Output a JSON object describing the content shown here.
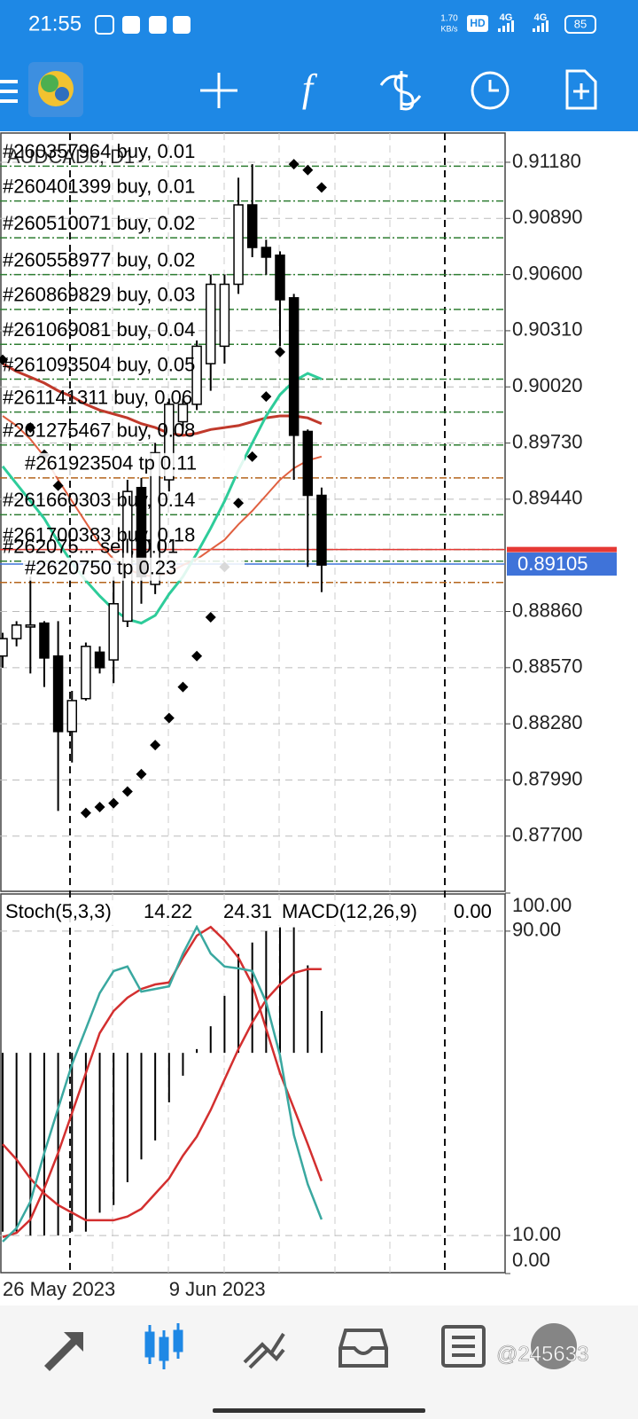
{
  "status_bar": {
    "time": "21:55",
    "speed": "1.70",
    "speed_unit": "KB/s",
    "hd": "HD",
    "network": [
      "4G",
      "4G"
    ],
    "battery": "85"
  },
  "watermark": "@245633",
  "chart_data": {
    "type": "candlestick",
    "title": "AUDCADc, D1",
    "categories": [
      "26 May 2023",
      null,
      null,
      null,
      null,
      null,
      null,
      null,
      null,
      null,
      null,
      null,
      "9 Jun 2023",
      null,
      null,
      null,
      null,
      null,
      null,
      null,
      null,
      null,
      null,
      null
    ],
    "open": [
      0.8863,
      0.8872,
      0.8878,
      0.888,
      0.8863,
      0.8824,
      0.8841,
      0.8865,
      0.8861,
      0.8881,
      0.895,
      0.89,
      0.8954,
      0.8984,
      0.8993,
      0.9014,
      0.9023,
      0.9055,
      0.9096,
      0.9074,
      0.907,
      0.9048,
      0.8979,
      0.8946
    ],
    "high": [
      0.8875,
      0.8881,
      0.8904,
      0.8881,
      0.8881,
      0.8845,
      0.887,
      0.8868,
      0.8904,
      0.8954,
      0.8955,
      0.8973,
      0.8996,
      0.8996,
      0.9026,
      0.906,
      0.906,
      0.911,
      0.9117,
      0.9078,
      0.9072,
      0.905,
      0.898,
      0.895
    ],
    "low": [
      0.8857,
      0.8868,
      0.8854,
      0.8847,
      0.8783,
      0.8808,
      0.884,
      0.8854,
      0.8849,
      0.8878,
      0.889,
      0.8895,
      0.8948,
      0.898,
      0.899,
      0.9,
      0.9014,
      0.905,
      0.9069,
      0.906,
      0.9023,
      0.8954,
      0.8909,
      0.8896
    ],
    "close": [
      0.8872,
      0.8879,
      0.8879,
      0.8862,
      0.8824,
      0.884,
      0.8868,
      0.8857,
      0.889,
      0.8948,
      0.8904,
      0.8968,
      0.8993,
      0.8993,
      0.9023,
      0.9055,
      0.9055,
      0.9096,
      0.9074,
      0.9069,
      0.9047,
      0.8977,
      0.8946,
      0.891
    ],
    "up_color": "#ffffff",
    "down_color": "#000000",
    "ylim": [
      0.87415,
      0.91331
    ],
    "yticks": [
      {
        "value": 0.9118,
        "label": "0.91180"
      },
      {
        "value": 0.9089,
        "label": "0.90890"
      },
      {
        "value": 0.906,
        "label": "0.90600"
      },
      {
        "value": 0.9031,
        "label": "0.90310"
      },
      {
        "value": 0.9002,
        "label": "0.90020"
      },
      {
        "value": 0.8973,
        "label": "0.89730"
      },
      {
        "value": 0.8944,
        "label": "0.89440"
      },
      {
        "value": 0.8886,
        "label": "0.88860"
      },
      {
        "value": 0.8857,
        "label": "0.88570"
      },
      {
        "value": 0.8828,
        "label": "0.88280"
      },
      {
        "value": 0.8799,
        "label": "0.87990"
      },
      {
        "value": 0.877,
        "label": "0.87700"
      }
    ],
    "grid": true,
    "bid": 0.89105,
    "bid_color": "#3f73d9",
    "ask": 0.8918,
    "ask_color": "#e53935",
    "moving_averages": [
      {
        "color": "#c0392b",
        "values": [
          0.9014,
          0.901,
          0.9007,
          0.9004,
          0.9,
          0.8997,
          0.8993,
          0.899,
          0.8988,
          0.8986,
          0.8983,
          0.8981,
          0.8978,
          0.8977,
          0.8978,
          0.898,
          0.8981,
          0.8982,
          0.8984,
          0.8986,
          0.8987,
          0.8987,
          0.8986,
          0.8983
        ]
      },
      {
        "color": "#e06040",
        "values": [
          0.8987,
          0.8982,
          0.8975,
          0.8966,
          0.8954,
          0.8943,
          0.8932,
          0.8921,
          0.8913,
          0.8908,
          0.8905,
          0.8904,
          0.8906,
          0.891,
          0.8913,
          0.8918,
          0.8923,
          0.8931,
          0.8938,
          0.8946,
          0.8954,
          0.896,
          0.8964,
          0.8966
        ]
      },
      {
        "color": "#2ecc9a",
        "values": [
          0.8961,
          0.8952,
          0.8943,
          0.8934,
          0.8922,
          0.8911,
          0.8902,
          0.8894,
          0.8887,
          0.8882,
          0.888,
          0.8884,
          0.8895,
          0.8904,
          0.8916,
          0.8929,
          0.8943,
          0.8959,
          0.8973,
          0.8987,
          0.8998,
          0.9005,
          0.9009,
          0.9006
        ]
      }
    ],
    "sar": {
      "color": "#000000",
      "values": [
        0.9016,
        null,
        0.8981,
        0.8967,
        0.8951,
        null,
        0.8782,
        0.8785,
        0.8787,
        0.8793,
        0.8802,
        0.8817,
        0.8831,
        0.8847,
        0.8863,
        0.8883,
        0.8909,
        0.8942,
        0.8966,
        0.8997,
        0.902,
        0.9117,
        0.9114,
        0.9105
      ]
    },
    "orders": [
      {
        "label": "#260357964 buy, 0.01",
        "price": 0.9116,
        "color": "#2e7d32"
      },
      {
        "label": "#260401399 buy, 0.01",
        "price": 0.9098,
        "color": "#2e7d32"
      },
      {
        "label": "#260510071 buy, 0.02",
        "price": 0.9079,
        "color": "#2e7d32"
      },
      {
        "label": "#260558977 buy, 0.02",
        "price": 0.906,
        "color": "#2e7d32"
      },
      {
        "label": "#260869829 buy, 0.03",
        "price": 0.9042,
        "color": "#2e7d32"
      },
      {
        "label": "#261069081 buy, 0.04",
        "price": 0.9024,
        "color": "#2e7d32"
      },
      {
        "label": "#261093504 buy, 0.05",
        "price": 0.9006,
        "color": "#2e7d32"
      },
      {
        "label": "#261141311 buy, 0.06",
        "price": 0.8989,
        "color": "#2e7d32"
      },
      {
        "label": "#261275467 buy, 0.08",
        "price": 0.8972,
        "color": "#2e7d32"
      },
      {
        "label": "#261923504 tp 0.11",
        "price": 0.8955,
        "color": "#b5651d"
      },
      {
        "label": "#261660303 buy, 0.14",
        "price": 0.8936,
        "color": "#2e7d32"
      },
      {
        "label": "#261700383 buy, 0.18",
        "price": 0.8918,
        "color": "#2e7d32"
      },
      {
        "label": "#262075... sell, 0.01",
        "price": 0.8912,
        "color": "#2e7d32"
      },
      {
        "label": "#2620750 tp 0.23",
        "price": 0.8901,
        "color": "#b5651d"
      }
    ],
    "stoch": {
      "label": "Stoch(5,3,3)",
      "main_last": 14.22,
      "signal_last": 24.31,
      "ylim": [
        0,
        100
      ],
      "yticks": [
        {
          "value": 100,
          "label": "100.00"
        },
        {
          "value": 90,
          "label": "90.00"
        },
        {
          "value": 10,
          "label": "10.00"
        },
        {
          "value": 0,
          "label": "0.00"
        }
      ],
      "main": {
        "color": "#3aa8a0",
        "values": [
          8.4,
          11.9,
          18.9,
          31.7,
          43.4,
          55.0,
          64.3,
          73.7,
          79.5,
          80.7,
          74.1,
          74.8,
          75.5,
          84.1,
          91.1,
          84.1,
          80.7,
          80.2,
          79.5,
          71.3,
          57.3,
          36.4,
          23.5,
          14.22
        ]
      },
      "signal": {
        "color": "#d32f2f",
        "values": [
          9.6,
          10.7,
          14.2,
          22.4,
          31.7,
          42.2,
          52.7,
          63.2,
          69.0,
          72.5,
          74.8,
          76.0,
          76.5,
          83.0,
          88.8,
          91.1,
          87.6,
          83.0,
          76.0,
          64.3,
          52.7,
          43.4,
          34.0,
          24.31
        ]
      }
    },
    "macd": {
      "label": "MACD(12,26,9)",
      "last": {
        "value": 0,
        "label": "0.00"
      },
      "ylim": [
        -0.0058,
        0.0042
      ],
      "histogram": [
        -0.0047,
        -0.0047,
        -0.0048,
        -0.0048,
        -0.0048,
        -0.0047,
        -0.0047,
        -0.0042,
        -0.004,
        -0.0034,
        -0.0028,
        -0.0023,
        -0.0013,
        -0.0006,
        0.0001,
        0.0007,
        0.0015,
        0.0026,
        0.0029,
        0.0032,
        0.0033,
        0.0033,
        0.0023,
        0.0011
      ],
      "signal": {
        "color": "#d32f2f",
        "values": [
          -0.0024,
          -0.0028,
          -0.0033,
          -0.0037,
          -0.004,
          -0.0042,
          -0.0044,
          -0.0044,
          -0.0044,
          -0.0043,
          -0.0041,
          -0.0037,
          -0.0033,
          -0.0027,
          -0.0022,
          -0.0015,
          -0.0007,
          0.0001,
          0.0008,
          0.0014,
          0.0018,
          0.0021,
          0.0022,
          0.0022
        ]
      }
    }
  }
}
